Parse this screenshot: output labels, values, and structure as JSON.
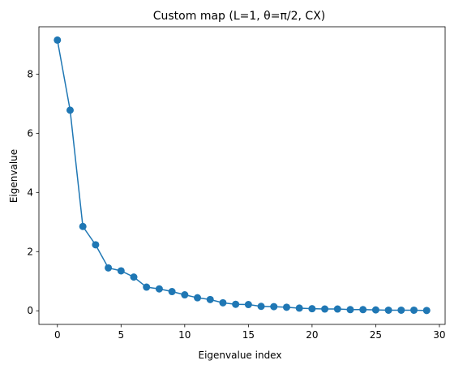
{
  "chart_data": {
    "type": "line",
    "title": "Custom map (L=1, θ=π/2, CX)",
    "xlabel": "Eigenvalue index",
    "ylabel": "Eigenvalue",
    "xlim": [
      -1.45,
      30.45
    ],
    "ylim": [
      -0.46,
      9.6
    ],
    "xticks": [
      0,
      5,
      10,
      15,
      20,
      25,
      30
    ],
    "yticks": [
      0,
      2,
      4,
      6,
      8
    ],
    "grid": false,
    "legend": "none",
    "series": [
      {
        "color": "#1f77b4",
        "marker": "circle",
        "x": [
          0,
          1,
          2,
          3,
          4,
          5,
          6,
          7,
          8,
          9,
          10,
          11,
          12,
          13,
          14,
          15,
          16,
          17,
          18,
          19,
          20,
          21,
          22,
          23,
          24,
          25,
          26,
          27,
          28,
          29
        ],
        "y": [
          9.15,
          6.78,
          2.85,
          2.23,
          1.45,
          1.35,
          1.14,
          0.8,
          0.74,
          0.65,
          0.54,
          0.44,
          0.38,
          0.27,
          0.22,
          0.21,
          0.15,
          0.14,
          0.12,
          0.09,
          0.07,
          0.06,
          0.06,
          0.04,
          0.04,
          0.03,
          0.02,
          0.02,
          0.02,
          0.01
        ]
      }
    ]
  }
}
